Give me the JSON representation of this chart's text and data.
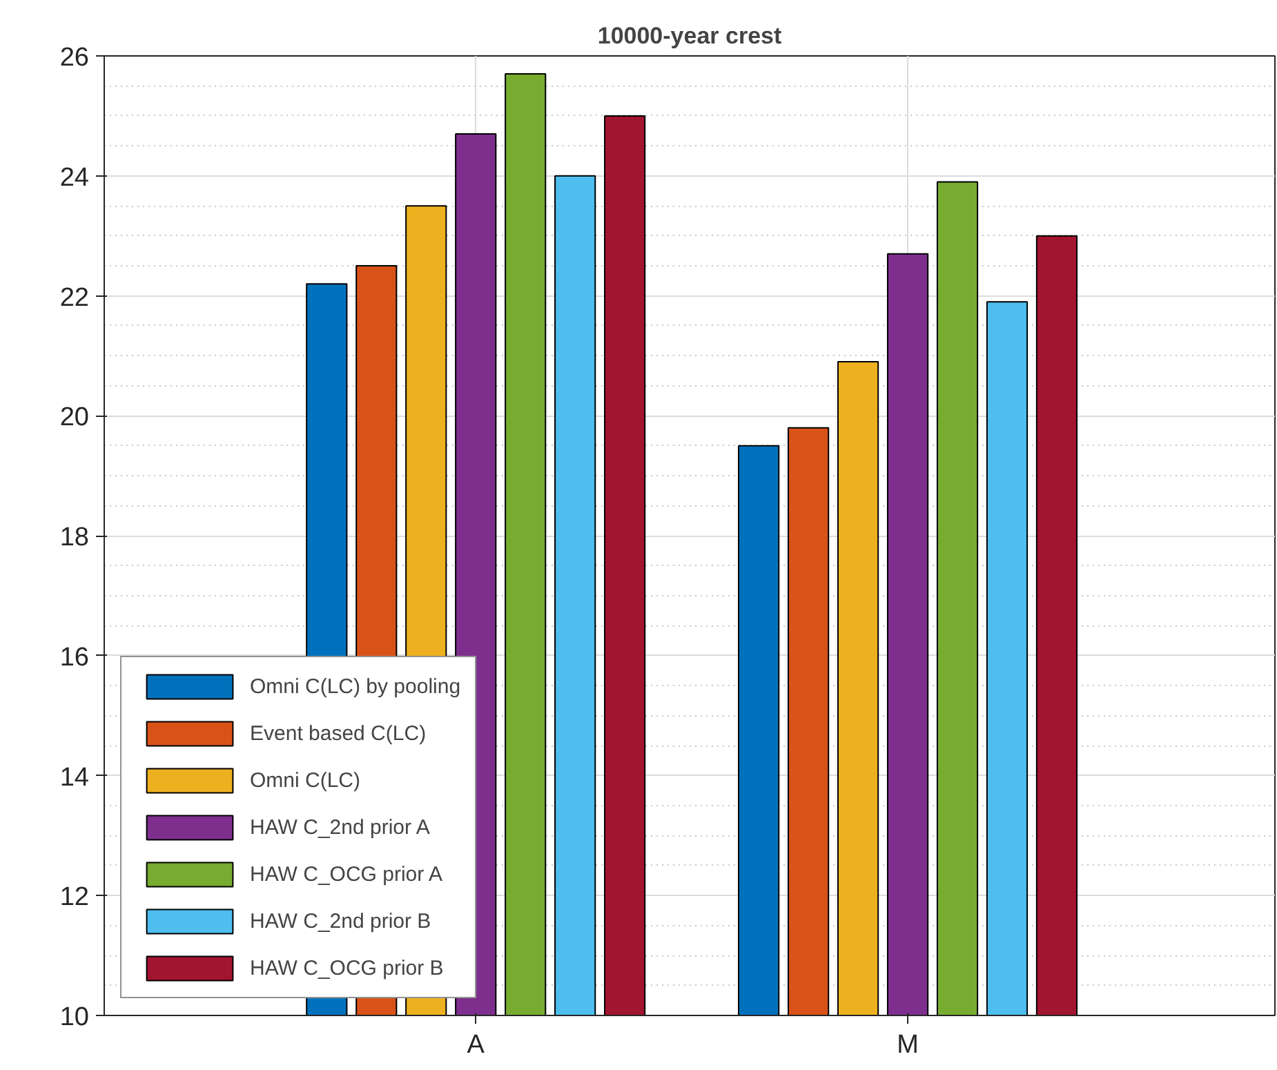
{
  "chart_data": {
    "type": "bar",
    "title": "10000-year crest",
    "categories": [
      "A",
      "M"
    ],
    "series": [
      {
        "name": "Omni C(LC) by pooling",
        "color": "#0072bd",
        "values": [
          22.2,
          19.5
        ]
      },
      {
        "name": "Event based C(LC)",
        "color": "#d95319",
        "values": [
          22.5,
          19.8
        ]
      },
      {
        "name": "Omni C(LC)",
        "color": "#edb120",
        "values": [
          23.5,
          20.9
        ]
      },
      {
        "name": "HAW C_2nd prior A",
        "color": "#7e2f8e",
        "values": [
          24.7,
          22.7
        ]
      },
      {
        "name": "HAW C_OCG prior A",
        "color": "#77ac30",
        "values": [
          25.7,
          23.9
        ]
      },
      {
        "name": "HAW C_2nd prior B",
        "color": "#4dbeee",
        "values": [
          24.0,
          21.9
        ]
      },
      {
        "name": "HAW C_OCG prior B",
        "color": "#a2142f",
        "values": [
          25.0,
          23.0
        ]
      }
    ],
    "ylim": [
      10,
      26
    ],
    "yticks": [
      10,
      12,
      14,
      16,
      18,
      20,
      22,
      24,
      26
    ],
    "grid": true,
    "legend": "bottom left"
  }
}
